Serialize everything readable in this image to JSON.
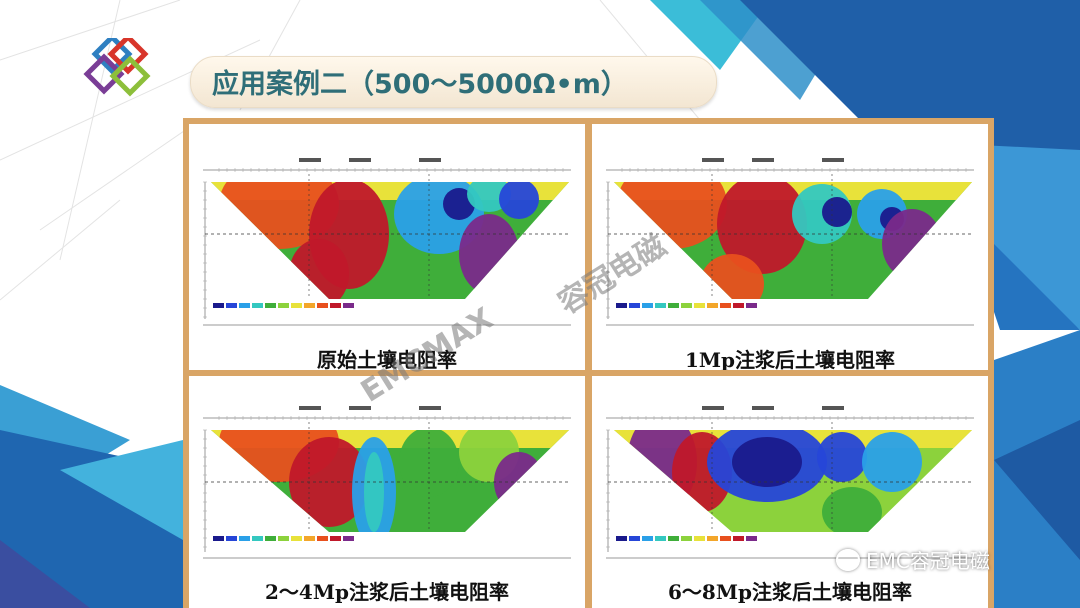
{
  "slide": {
    "title": "应用案例二（500～5000Ω•m）",
    "watermark_en": "EMCMAX",
    "watermark_cn": "容冠电磁",
    "wechat_label": "EMC容冠电磁"
  },
  "panels": [
    {
      "caption": "原始土壤电阻率"
    },
    {
      "caption": "1Mp注浆后土壤电阻率"
    },
    {
      "caption": "2～4Mp注浆后土壤电阻率"
    },
    {
      "caption": "6～8Mp注浆后土壤电阻率"
    }
  ],
  "colors": {
    "frame": "#d9a566",
    "title_text": "#2f6e78",
    "resistivity_scale": [
      "#1a1a8c",
      "#2646d8",
      "#2aa0e8",
      "#34c8c0",
      "#3fae3a",
      "#8cd23c",
      "#e8e23a",
      "#f3a62a",
      "#e8501e",
      "#c0182a",
      "#7a2a8a"
    ]
  }
}
